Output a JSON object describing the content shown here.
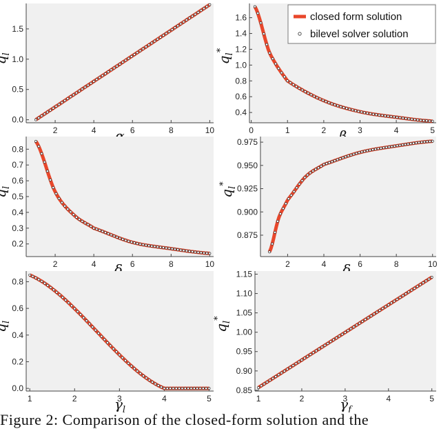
{
  "caption": "Figure 2: Comparison of the closed-form solution and the",
  "legend": {
    "line_label": "closed form solution",
    "marker_label": "bilevel solver solution"
  },
  "colors": {
    "line": "#e8472b",
    "marker_edge": "#333333",
    "marker_fill": "#ffffff",
    "panel_bg": "#f0f0f0"
  },
  "chart_data": [
    {
      "type": "line",
      "xlabel": "α",
      "ylabel": "q_l*",
      "xlim": [
        0.5,
        10.2
      ],
      "ylim": [
        -0.05,
        1.92
      ],
      "xticks": [
        2,
        4,
        6,
        8,
        10
      ],
      "yticks": [
        0.0,
        0.5,
        1.0,
        1.5
      ],
      "xtick_labels": [
        "2",
        "4",
        "6",
        "8",
        "10"
      ],
      "ytick_labels": [
        "0.0",
        "0.5",
        "1.0",
        "1.5"
      ],
      "series": [
        {
          "x": [
            1,
            10
          ],
          "y": [
            0.0,
            1.9
          ]
        }
      ],
      "legend": false,
      "grid": false
    },
    {
      "type": "line",
      "xlabel": "β",
      "ylabel": "q_l*",
      "xlim": [
        -0.05,
        5.1
      ],
      "ylim": [
        0.27,
        1.78
      ],
      "xticks": [
        0,
        1,
        2,
        3,
        4,
        5
      ],
      "yticks": [
        0.4,
        0.6,
        0.8,
        1.0,
        1.2,
        1.4,
        1.6
      ],
      "xtick_labels": [
        "0",
        "1",
        "2",
        "3",
        "4",
        "5"
      ],
      "ytick_labels": [
        "0.4",
        "0.6",
        "0.8",
        "1.0",
        "1.2",
        "1.4",
        "1.6"
      ],
      "series": [
        {
          "x": [
            0.1,
            0.5,
            1,
            2,
            3,
            4,
            5
          ],
          "y": [
            1.74,
            1.16,
            0.8,
            0.55,
            0.41,
            0.34,
            0.29
          ]
        }
      ],
      "legend": true,
      "legend_position": "top-right",
      "grid": false
    },
    {
      "type": "line",
      "xlabel": "δ_l",
      "ylabel": "q_l*",
      "xlim": [
        0.5,
        10.2
      ],
      "ylim": [
        0.12,
        0.88
      ],
      "xticks": [
        2,
        4,
        6,
        8,
        10
      ],
      "yticks": [
        0.2,
        0.3,
        0.4,
        0.5,
        0.6,
        0.7,
        0.8
      ],
      "xtick_labels": [
        "2",
        "4",
        "6",
        "8",
        "10"
      ],
      "ytick_labels": [
        "0.2",
        "0.3",
        "0.4",
        "0.5",
        "0.6",
        "0.7",
        "0.8"
      ],
      "series": [
        {
          "x": [
            1,
            2,
            3,
            4,
            6,
            8,
            10
          ],
          "y": [
            0.85,
            0.53,
            0.38,
            0.3,
            0.21,
            0.17,
            0.14
          ]
        }
      ],
      "legend": false,
      "grid": false
    },
    {
      "type": "line",
      "xlabel": "δ_f",
      "ylabel": "q_l*",
      "xlim": [
        0.5,
        10.2
      ],
      "ylim": [
        0.852,
        0.981
      ],
      "xticks": [
        2,
        4,
        6,
        8,
        10
      ],
      "yticks": [
        0.875,
        0.9,
        0.925,
        0.95,
        0.975
      ],
      "xtick_labels": [
        "2",
        "4",
        "6",
        "8",
        "10"
      ],
      "ytick_labels": [
        "0.875",
        "0.900",
        "0.925",
        "0.950",
        "0.975"
      ],
      "series": [
        {
          "x": [
            1,
            1.5,
            2,
            3,
            4,
            6,
            8,
            10
          ],
          "y": [
            0.857,
            0.893,
            0.913,
            0.938,
            0.951,
            0.964,
            0.971,
            0.976
          ]
        }
      ],
      "legend": false,
      "grid": false
    },
    {
      "type": "line",
      "xlabel": "γ_l",
      "ylabel": "q_l*",
      "xlim": [
        0.92,
        5.1
      ],
      "ylim": [
        -0.02,
        0.88
      ],
      "xticks": [
        1,
        2,
        3,
        4,
        5
      ],
      "yticks": [
        0.0,
        0.2,
        0.4,
        0.6,
        0.8
      ],
      "xtick_labels": [
        "1",
        "2",
        "3",
        "4",
        "5"
      ],
      "ytick_labels": [
        "0.0",
        "0.2",
        "0.4",
        "0.6",
        "0.8"
      ],
      "series": [
        {
          "x": [
            1,
            4,
            5
          ],
          "y": [
            0.85,
            0.0,
            0.0
          ]
        }
      ],
      "legend": false,
      "grid": false
    },
    {
      "type": "line",
      "xlabel": "γ_f",
      "ylabel": "q_l*",
      "xlim": [
        0.92,
        5.1
      ],
      "ylim": [
        0.848,
        1.158
      ],
      "xticks": [
        1,
        2,
        3,
        4,
        5
      ],
      "yticks": [
        0.85,
        0.9,
        0.95,
        1.0,
        1.05,
        1.1,
        1.15
      ],
      "xtick_labels": [
        "1",
        "2",
        "3",
        "4",
        "5"
      ],
      "ytick_labels": [
        "0.85",
        "0.90",
        "0.95",
        "1.00",
        "1.05",
        "1.10",
        "1.15"
      ],
      "series": [
        {
          "x": [
            1,
            5
          ],
          "y": [
            0.857,
            1.142
          ]
        }
      ],
      "legend": false,
      "grid": false
    }
  ]
}
